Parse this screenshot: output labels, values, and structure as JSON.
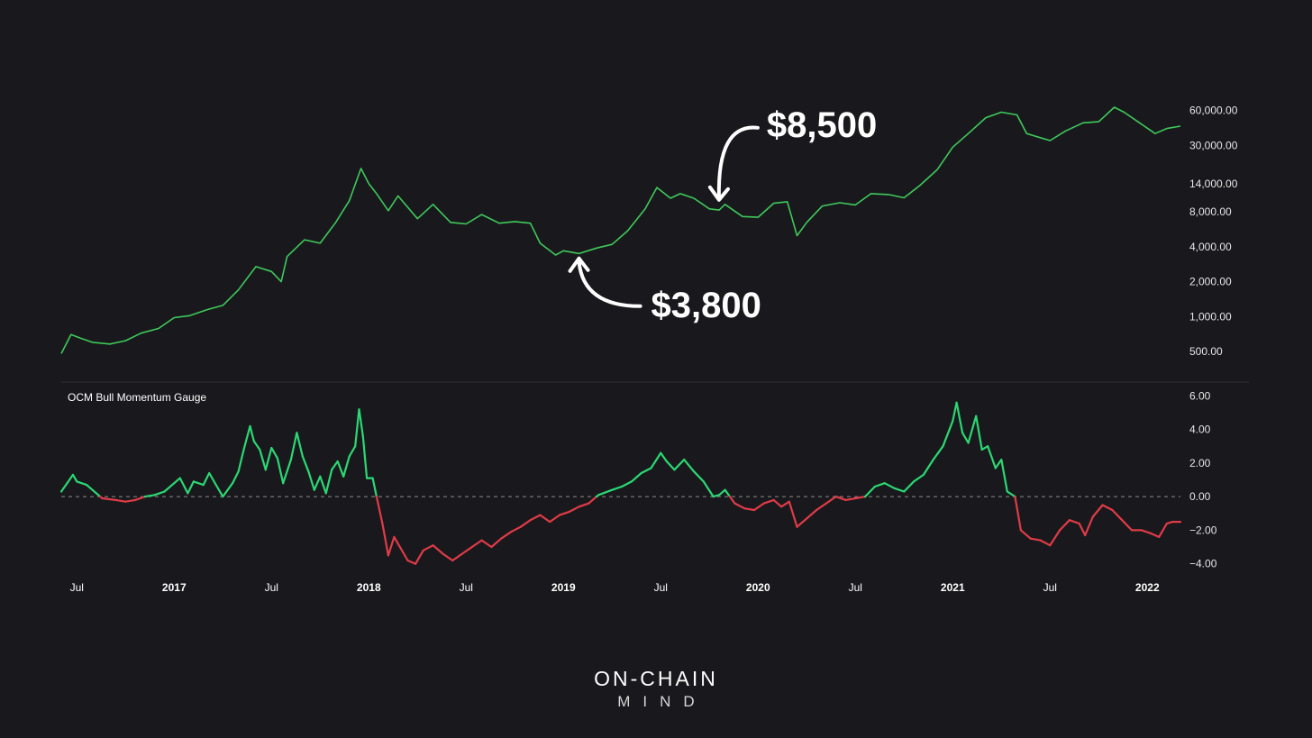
{
  "colors": {
    "background": "#19191d",
    "price_line": "#3ec95a",
    "gauge_positive": "#2bd873",
    "gauge_negative": "#e03b47",
    "zero_line": "#8a8a8a",
    "separator": "#2e2e33"
  },
  "brand": {
    "line1": "ON-CHAIN",
    "line2": "MIND"
  },
  "chart_data": [
    {
      "type": "line",
      "name": "price",
      "title": "",
      "yscale": "log",
      "ylim": [
        350,
        90000
      ],
      "y_ticks": [
        {
          "value": 60000,
          "label": "60,000.00"
        },
        {
          "value": 30000,
          "label": "30,000.00"
        },
        {
          "value": 14000,
          "label": "14,000.00"
        },
        {
          "value": 8000,
          "label": "8,000.00"
        },
        {
          "value": 4000,
          "label": "4,000.00"
        },
        {
          "value": 2000,
          "label": "2,000.00"
        },
        {
          "value": 1000,
          "label": "1,000.00"
        },
        {
          "value": 500,
          "label": "500.00"
        }
      ],
      "xlim": [
        2016.42,
        2022.17
      ],
      "points": [
        [
          2016.42,
          480
        ],
        [
          2016.47,
          700
        ],
        [
          2016.52,
          650
        ],
        [
          2016.58,
          600
        ],
        [
          2016.67,
          580
        ],
        [
          2016.75,
          620
        ],
        [
          2016.83,
          720
        ],
        [
          2016.92,
          790
        ],
        [
          2017.0,
          980
        ],
        [
          2017.08,
          1020
        ],
        [
          2017.17,
          1150
        ],
        [
          2017.25,
          1250
        ],
        [
          2017.33,
          1700
        ],
        [
          2017.42,
          2700
        ],
        [
          2017.5,
          2450
        ],
        [
          2017.55,
          2000
        ],
        [
          2017.58,
          3300
        ],
        [
          2017.67,
          4600
        ],
        [
          2017.75,
          4300
        ],
        [
          2017.83,
          6500
        ],
        [
          2017.9,
          10000
        ],
        [
          2017.96,
          19000
        ],
        [
          2018.0,
          14000
        ],
        [
          2018.04,
          11500
        ],
        [
          2018.1,
          8200
        ],
        [
          2018.15,
          11000
        ],
        [
          2018.25,
          7000
        ],
        [
          2018.33,
          9300
        ],
        [
          2018.42,
          6500
        ],
        [
          2018.5,
          6300
        ],
        [
          2018.58,
          7600
        ],
        [
          2018.67,
          6400
        ],
        [
          2018.75,
          6600
        ],
        [
          2018.83,
          6400
        ],
        [
          2018.88,
          4300
        ],
        [
          2018.96,
          3400
        ],
        [
          2019.0,
          3700
        ],
        [
          2019.08,
          3500
        ],
        [
          2019.17,
          3900
        ],
        [
          2019.25,
          4200
        ],
        [
          2019.33,
          5500
        ],
        [
          2019.42,
          8500
        ],
        [
          2019.48,
          13000
        ],
        [
          2019.55,
          10500
        ],
        [
          2019.6,
          11500
        ],
        [
          2019.67,
          10500
        ],
        [
          2019.75,
          8500
        ],
        [
          2019.8,
          8300
        ],
        [
          2019.83,
          9300
        ],
        [
          2019.92,
          7300
        ],
        [
          2020.0,
          7200
        ],
        [
          2020.08,
          9500
        ],
        [
          2020.15,
          9800
        ],
        [
          2020.2,
          5000
        ],
        [
          2020.25,
          6500
        ],
        [
          2020.33,
          9000
        ],
        [
          2020.42,
          9600
        ],
        [
          2020.5,
          9200
        ],
        [
          2020.58,
          11500
        ],
        [
          2020.67,
          11300
        ],
        [
          2020.75,
          10600
        ],
        [
          2020.83,
          13500
        ],
        [
          2020.92,
          18500
        ],
        [
          2021.0,
          29000
        ],
        [
          2021.08,
          38000
        ],
        [
          2021.17,
          52000
        ],
        [
          2021.25,
          58000
        ],
        [
          2021.33,
          55000
        ],
        [
          2021.38,
          38000
        ],
        [
          2021.45,
          35000
        ],
        [
          2021.5,
          33000
        ],
        [
          2021.58,
          40000
        ],
        [
          2021.67,
          47000
        ],
        [
          2021.75,
          48000
        ],
        [
          2021.83,
          64000
        ],
        [
          2021.88,
          58000
        ],
        [
          2021.96,
          47000
        ],
        [
          2022.04,
          38000
        ],
        [
          2022.1,
          42000
        ],
        [
          2022.17,
          44000
        ]
      ],
      "annotations": [
        {
          "label": "$8,500",
          "date": 2019.79,
          "value": 8500
        },
        {
          "label": "$3,800",
          "date": 2019.08,
          "value": 3800
        }
      ]
    },
    {
      "type": "line",
      "name": "gauge",
      "title": "OCM Bull Momentum Gauge",
      "ylim": [
        -4.5,
        6.5
      ],
      "y_ticks": [
        6,
        4,
        2,
        0,
        -2,
        -4
      ],
      "y_tick_labels": [
        "6.00",
        "4.00",
        "2.00",
        "0.00",
        "−2.00",
        "−4.00"
      ],
      "x_ticks": [
        {
          "value": 2016.5,
          "label": "Jul",
          "major": false
        },
        {
          "value": 2017.0,
          "label": "2017",
          "major": true
        },
        {
          "value": 2017.5,
          "label": "Jul",
          "major": false
        },
        {
          "value": 2018.0,
          "label": "2018",
          "major": true
        },
        {
          "value": 2018.5,
          "label": "Jul",
          "major": false
        },
        {
          "value": 2019.0,
          "label": "2019",
          "major": true
        },
        {
          "value": 2019.5,
          "label": "Jul",
          "major": false
        },
        {
          "value": 2020.0,
          "label": "2020",
          "major": true
        },
        {
          "value": 2020.5,
          "label": "Jul",
          "major": false
        },
        {
          "value": 2021.0,
          "label": "2021",
          "major": true
        },
        {
          "value": 2021.5,
          "label": "Jul",
          "major": false
        },
        {
          "value": 2022.0,
          "label": "2022",
          "major": true
        }
      ],
      "xlim": [
        2016.42,
        2022.17
      ],
      "points": [
        [
          2016.42,
          0.3
        ],
        [
          2016.45,
          0.8
        ],
        [
          2016.48,
          1.3
        ],
        [
          2016.5,
          0.9
        ],
        [
          2016.55,
          0.7
        ],
        [
          2016.6,
          0.2
        ],
        [
          2016.63,
          -0.1
        ],
        [
          2016.7,
          -0.2
        ],
        [
          2016.75,
          -0.3
        ],
        [
          2016.8,
          -0.2
        ],
        [
          2016.85,
          0.0
        ],
        [
          2016.9,
          0.1
        ],
        [
          2016.95,
          0.3
        ],
        [
          2017.0,
          0.8
        ],
        [
          2017.03,
          1.1
        ],
        [
          2017.07,
          0.2
        ],
        [
          2017.1,
          0.9
        ],
        [
          2017.15,
          0.7
        ],
        [
          2017.18,
          1.4
        ],
        [
          2017.22,
          0.6
        ],
        [
          2017.25,
          0.0
        ],
        [
          2017.3,
          0.8
        ],
        [
          2017.33,
          1.5
        ],
        [
          2017.36,
          2.9
        ],
        [
          2017.39,
          4.2
        ],
        [
          2017.41,
          3.3
        ],
        [
          2017.44,
          2.8
        ],
        [
          2017.47,
          1.6
        ],
        [
          2017.5,
          2.9
        ],
        [
          2017.53,
          2.3
        ],
        [
          2017.56,
          0.8
        ],
        [
          2017.6,
          2.2
        ],
        [
          2017.63,
          3.8
        ],
        [
          2017.66,
          2.4
        ],
        [
          2017.69,
          1.5
        ],
        [
          2017.72,
          0.4
        ],
        [
          2017.75,
          1.2
        ],
        [
          2017.78,
          0.2
        ],
        [
          2017.81,
          1.6
        ],
        [
          2017.84,
          2.1
        ],
        [
          2017.87,
          1.2
        ],
        [
          2017.9,
          2.4
        ],
        [
          2017.93,
          3.0
        ],
        [
          2017.95,
          5.2
        ],
        [
          2017.97,
          3.6
        ],
        [
          2017.99,
          1.1
        ],
        [
          2018.02,
          1.1
        ],
        [
          2018.04,
          0.0
        ],
        [
          2018.07,
          -1.6
        ],
        [
          2018.1,
          -3.5
        ],
        [
          2018.13,
          -2.4
        ],
        [
          2018.16,
          -3.0
        ],
        [
          2018.2,
          -3.8
        ],
        [
          2018.24,
          -4.0
        ],
        [
          2018.28,
          -3.2
        ],
        [
          2018.33,
          -2.9
        ],
        [
          2018.38,
          -3.4
        ],
        [
          2018.43,
          -3.8
        ],
        [
          2018.48,
          -3.4
        ],
        [
          2018.53,
          -3.0
        ],
        [
          2018.58,
          -2.6
        ],
        [
          2018.63,
          -3.0
        ],
        [
          2018.68,
          -2.5
        ],
        [
          2018.73,
          -2.1
        ],
        [
          2018.78,
          -1.8
        ],
        [
          2018.83,
          -1.4
        ],
        [
          2018.88,
          -1.1
        ],
        [
          2018.93,
          -1.5
        ],
        [
          2018.98,
          -1.1
        ],
        [
          2019.03,
          -0.9
        ],
        [
          2019.08,
          -0.6
        ],
        [
          2019.13,
          -0.4
        ],
        [
          2019.18,
          0.1
        ],
        [
          2019.25,
          0.4
        ],
        [
          2019.3,
          0.6
        ],
        [
          2019.35,
          0.9
        ],
        [
          2019.4,
          1.4
        ],
        [
          2019.45,
          1.7
        ],
        [
          2019.5,
          2.6
        ],
        [
          2019.53,
          2.1
        ],
        [
          2019.57,
          1.6
        ],
        [
          2019.62,
          2.2
        ],
        [
          2019.67,
          1.5
        ],
        [
          2019.72,
          0.9
        ],
        [
          2019.77,
          0.0
        ],
        [
          2019.8,
          0.1
        ],
        [
          2019.83,
          0.4
        ],
        [
          2019.88,
          -0.4
        ],
        [
          2019.93,
          -0.7
        ],
        [
          2019.98,
          -0.8
        ],
        [
          2020.03,
          -0.4
        ],
        [
          2020.08,
          -0.2
        ],
        [
          2020.12,
          -0.6
        ],
        [
          2020.16,
          -0.3
        ],
        [
          2020.2,
          -1.8
        ],
        [
          2020.25,
          -1.3
        ],
        [
          2020.3,
          -0.8
        ],
        [
          2020.35,
          -0.4
        ],
        [
          2020.4,
          0.0
        ],
        [
          2020.45,
          -0.2
        ],
        [
          2020.5,
          -0.1
        ],
        [
          2020.55,
          0.0
        ],
        [
          2020.6,
          0.6
        ],
        [
          2020.65,
          0.8
        ],
        [
          2020.7,
          0.5
        ],
        [
          2020.75,
          0.3
        ],
        [
          2020.8,
          0.9
        ],
        [
          2020.85,
          1.3
        ],
        [
          2020.9,
          2.2
        ],
        [
          2020.95,
          3.0
        ],
        [
          2021.0,
          4.5
        ],
        [
          2021.02,
          5.6
        ],
        [
          2021.05,
          3.8
        ],
        [
          2021.08,
          3.2
        ],
        [
          2021.12,
          4.8
        ],
        [
          2021.15,
          2.8
        ],
        [
          2021.18,
          3.0
        ],
        [
          2021.22,
          1.7
        ],
        [
          2021.25,
          2.2
        ],
        [
          2021.28,
          0.3
        ],
        [
          2021.32,
          0.0
        ],
        [
          2021.35,
          -2.0
        ],
        [
          2021.4,
          -2.5
        ],
        [
          2021.45,
          -2.6
        ],
        [
          2021.5,
          -2.9
        ],
        [
          2021.55,
          -2.0
        ],
        [
          2021.6,
          -1.4
        ],
        [
          2021.65,
          -1.6
        ],
        [
          2021.68,
          -2.3
        ],
        [
          2021.72,
          -1.2
        ],
        [
          2021.77,
          -0.5
        ],
        [
          2021.82,
          -0.8
        ],
        [
          2021.87,
          -1.4
        ],
        [
          2021.92,
          -2.0
        ],
        [
          2021.97,
          -2.0
        ],
        [
          2022.02,
          -2.2
        ],
        [
          2022.06,
          -2.4
        ],
        [
          2022.1,
          -1.6
        ],
        [
          2022.13,
          -1.5
        ],
        [
          2022.17,
          -1.5
        ]
      ]
    }
  ]
}
